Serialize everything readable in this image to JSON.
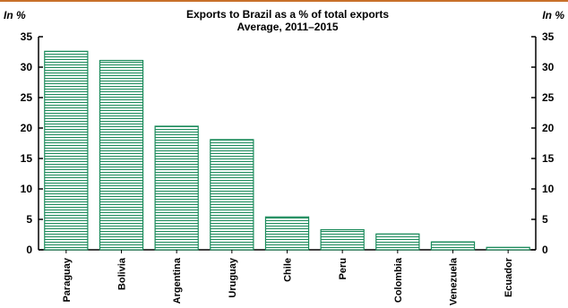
{
  "chart_data": {
    "type": "bar",
    "title": "Exports to Brazil as a % of total exports",
    "subtitle": "Average, 2011–2015",
    "ylabel_left": "In %",
    "ylabel_right": "In %",
    "categories": [
      "Paraguay",
      "Bolivia",
      "Argentina",
      "Uruguay",
      "Chile",
      "Peru",
      "Colombia",
      "Venezuela",
      "Ecuador"
    ],
    "values": [
      32.6,
      31.1,
      20.3,
      18.1,
      5.4,
      3.3,
      2.6,
      1.3,
      0.4
    ],
    "ylim": [
      0,
      35
    ],
    "yticks": [
      "0",
      "5",
      "10",
      "15",
      "20",
      "25",
      "30",
      "35"
    ],
    "grid": false,
    "legend": "none",
    "colors": {
      "bar_stroke": "#1a8a5a",
      "bar_fill": "#ffffff",
      "top_rule": "#c8702a"
    }
  }
}
